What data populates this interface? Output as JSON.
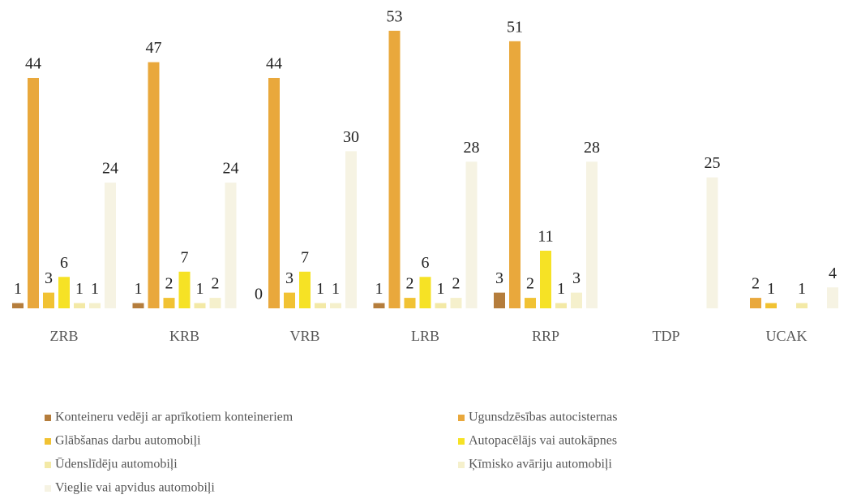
{
  "chart_data": {
    "type": "bar",
    "categories": [
      "ZRB",
      "KRB",
      "VRB",
      "LRB",
      "RRP",
      "TDP",
      "UCAK"
    ],
    "series": [
      {
        "name": "Konteineru vedēji ar aprīkotiem konteineriem",
        "color": "#b57d3c",
        "values": [
          1,
          1,
          0,
          1,
          3,
          null,
          null
        ]
      },
      {
        "name": "Ugunsdzēsības autocisternas",
        "color": "#e9a83c",
        "values": [
          44,
          47,
          44,
          53,
          51,
          null,
          2
        ]
      },
      {
        "name": "Glābšanas darbu automobiļi",
        "color": "#f1c233",
        "values": [
          3,
          2,
          3,
          2,
          2,
          null,
          1
        ]
      },
      {
        "name": "Autopacēlājs vai autokāpnes",
        "color": "#f6e225",
        "values": [
          6,
          7,
          7,
          6,
          11,
          null,
          null
        ]
      },
      {
        "name": "Ūdenslīdēju automobiļi",
        "color": "#f3e9a6",
        "values": [
          1,
          1,
          1,
          1,
          1,
          null,
          1
        ]
      },
      {
        "name": "Ķīmisko avāriju automobiļi",
        "color": "#f5f0cc",
        "values": [
          1,
          2,
          1,
          2,
          3,
          null,
          null
        ]
      },
      {
        "name": "Vieglie vai apvidus automobiļi",
        "color": "#f6f3e3",
        "values": [
          24,
          24,
          30,
          28,
          28,
          25,
          4
        ]
      }
    ],
    "ylim": [
      0,
      55
    ]
  }
}
